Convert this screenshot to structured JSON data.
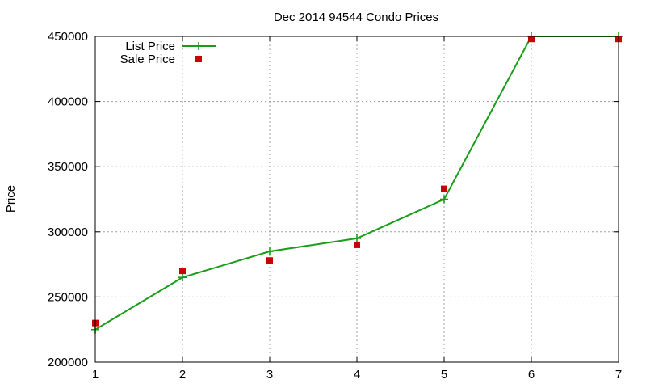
{
  "chart_data": {
    "type": "line",
    "title": "Dec 2014 94544 Condo Prices",
    "xlabel": "",
    "ylabel": "Price",
    "xlim": [
      1,
      7
    ],
    "ylim": [
      200000,
      450000
    ],
    "xticks": [
      1,
      2,
      3,
      4,
      5,
      6,
      7
    ],
    "yticks": [
      200000,
      250000,
      300000,
      350000,
      400000,
      450000
    ],
    "grid": true,
    "legend_position": "top-left",
    "series": [
      {
        "name": "List Price",
        "style": "line-with-plus-markers",
        "color": "#1a9e1a",
        "x": [
          1,
          2,
          3,
          4,
          5,
          6,
          7
        ],
        "y": [
          225000,
          265000,
          285000,
          295000,
          325000,
          450000,
          450000
        ]
      },
      {
        "name": "Sale Price",
        "style": "square-markers",
        "color": "#cc0000",
        "x": [
          1,
          2,
          3,
          4,
          5,
          6,
          7
        ],
        "y": [
          230000,
          270000,
          278000,
          290000,
          333000,
          448000,
          448000
        ]
      }
    ]
  }
}
